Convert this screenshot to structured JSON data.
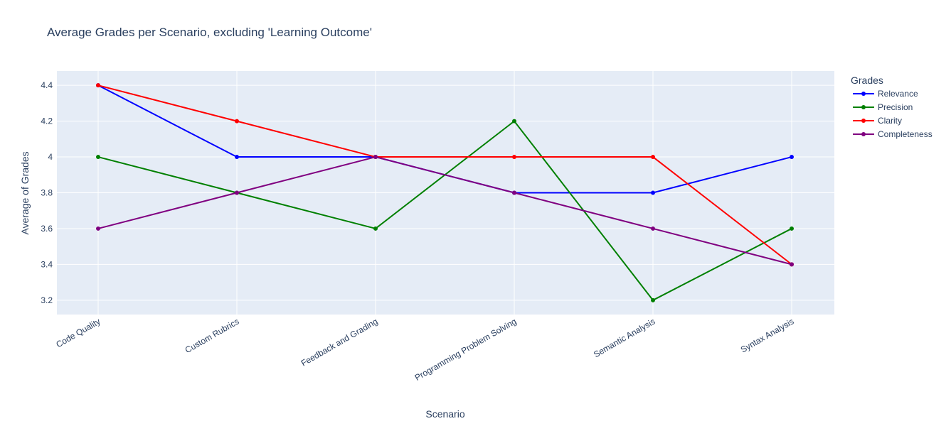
{
  "chart_data": {
    "type": "line",
    "title": "Average Grades per Scenario, excluding 'Learning Outcome'",
    "xlabel": "Scenario",
    "ylabel": "Average of Grades",
    "categories": [
      "Code Quality",
      "Custom Rubrics",
      "Feedback and Grading",
      "Programming Problem Solving",
      "Semantic Analysis",
      "Syntax Analysis"
    ],
    "ylim": [
      3.12,
      4.48
    ],
    "yticks": [
      3.2,
      3.4,
      3.6,
      3.8,
      4.0,
      4.2,
      4.4
    ],
    "ytick_labels": [
      "3.2",
      "3.4",
      "3.6",
      "3.8",
      "4",
      "4.2",
      "4.4"
    ],
    "grid": true,
    "legend_title": "Grades",
    "legend_position": "top-right",
    "series": [
      {
        "name": "Relevance",
        "color": "#0000ff",
        "values": [
          4.4,
          4.0,
          4.0,
          3.8,
          3.8,
          4.0
        ]
      },
      {
        "name": "Precision",
        "color": "#008000",
        "values": [
          4.0,
          3.8,
          3.6,
          4.2,
          3.2,
          3.6
        ]
      },
      {
        "name": "Clarity",
        "color": "#ff0000",
        "values": [
          4.4,
          4.2,
          4.0,
          4.0,
          4.0,
          3.4
        ]
      },
      {
        "name": "Completeness",
        "color": "#800080",
        "values": [
          3.6,
          3.8,
          4.0,
          3.8,
          3.6,
          3.4
        ]
      }
    ]
  }
}
